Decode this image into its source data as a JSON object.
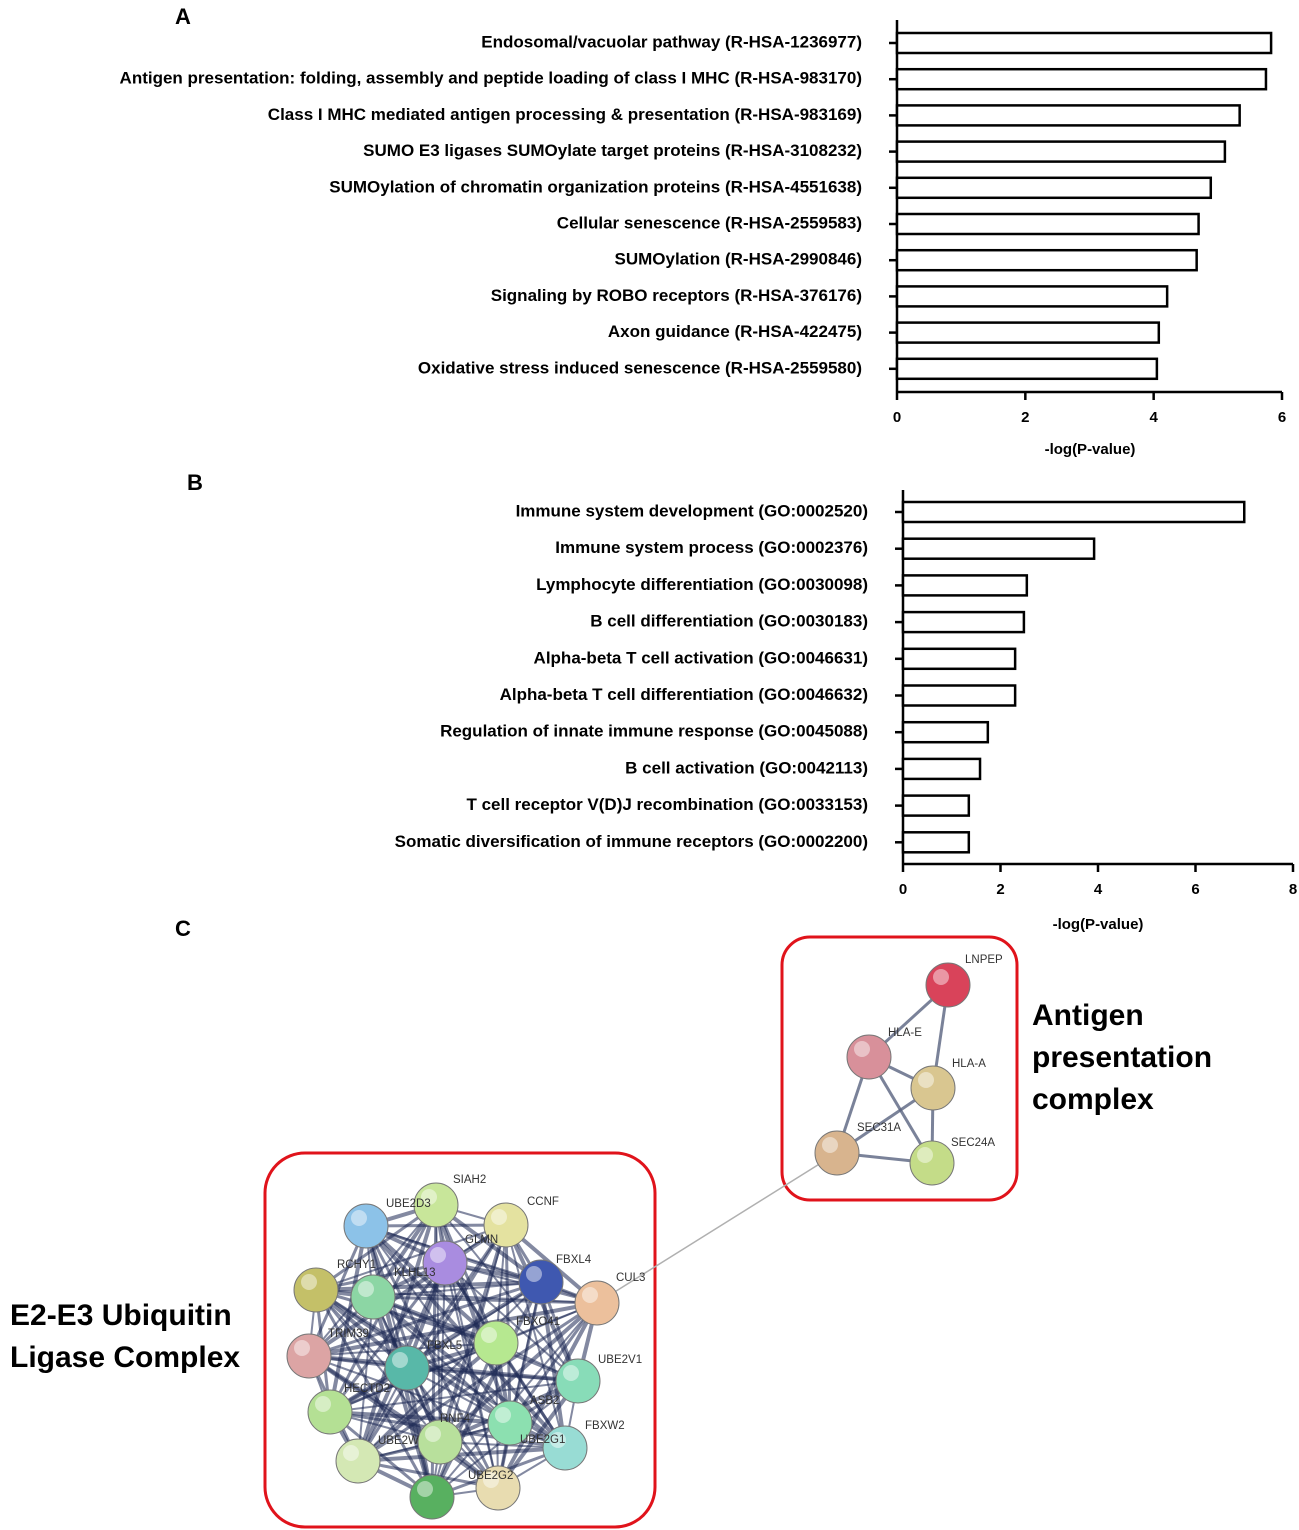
{
  "chart_data": [
    {
      "type": "barh",
      "panel": "A",
      "xlabel": "-log(P-value)",
      "categories": [
        "Endosomal/vacuolar pathway (R-HSA-1236977)",
        "Antigen presentation: folding, assembly and peptide loading of class I MHC (R-HSA-983170)",
        "Class I MHC mediated antigen processing & presentation (R-HSA-983169)",
        "SUMO E3 ligases SUMOylate target proteins (R-HSA-3108232)",
        "SUMOylation of chromatin organization proteins (R-HSA-4551638)",
        "Cellular senescence (R-HSA-2559583)",
        "SUMOylation (R-HSA-2990846)",
        "Signaling by ROBO receptors (R-HSA-376176)",
        "Axon guidance (R-HSA-422475)",
        "Oxidative stress induced senescence (R-HSA-2559580)"
      ],
      "values": [
        5.83,
        5.75,
        5.34,
        5.11,
        4.89,
        4.7,
        4.67,
        4.21,
        4.08,
        4.05
      ],
      "color": "#ffffff",
      "xlim": [
        0,
        6
      ],
      "xticks": [
        0,
        2,
        4,
        6
      ]
    },
    {
      "type": "barh",
      "panel": "B",
      "xlabel": "-log(P-value)",
      "categories": [
        "Immune system development (GO:0002520)",
        "Immune system process (GO:0002376)",
        "Lymphocyte differentiation (GO:0030098)",
        "B cell differentiation (GO:0030183)",
        "Alpha-beta T cell activation (GO:0046631)",
        "Alpha-beta T cell differentiation (GO:0046632)",
        "Regulation of innate immune response (GO:0045088)",
        "B cell activation (GO:0042113)",
        "T cell receptor V(D)J recombination (GO:0033153)",
        "Somatic diversification of immune receptors (GO:0002200)"
      ],
      "values": [
        7.0,
        3.92,
        2.54,
        2.48,
        2.3,
        2.3,
        1.74,
        1.58,
        1.35,
        1.35
      ],
      "color": "#ffffff",
      "xlim": [
        0,
        8
      ],
      "xticks": [
        0,
        2,
        4,
        6,
        8
      ]
    }
  ],
  "network": {
    "panel": "C",
    "groups": [
      {
        "label_lines": [
          "Antigen",
          "presentation",
          "complex"
        ]
      },
      {
        "label_lines": [
          "E2-E3 Ubiquitin",
          "Ligase Complex"
        ]
      }
    ],
    "nodes": [
      {
        "label": "LNPEP",
        "color": "#d9435a"
      },
      {
        "label": "HLA-E",
        "color": "#d8909a"
      },
      {
        "label": "HLA-A",
        "color": "#d9c690"
      },
      {
        "label": "SEC31A",
        "color": "#d8b48e"
      },
      {
        "label": "SEC24A",
        "color": "#c4dc88"
      },
      {
        "label": "SIAH2",
        "color": "#c8e69a"
      },
      {
        "label": "UBE2D3",
        "color": "#8cc2e8"
      },
      {
        "label": "CCNF",
        "color": "#e4e2a0"
      },
      {
        "label": "GLMN",
        "color": "#a98ce0"
      },
      {
        "label": "FBXL4",
        "color": "#3f58b0"
      },
      {
        "label": "CUL3",
        "color": "#ecc09c"
      },
      {
        "label": "RCHY1",
        "color": "#c4c068"
      },
      {
        "label": "KLHL13",
        "color": "#8cd6a4"
      },
      {
        "label": "TRIM39",
        "color": "#dca4a4"
      },
      {
        "label": "FBXO41",
        "color": "#b6e890"
      },
      {
        "label": "FBXL5",
        "color": "#58b8a8"
      },
      {
        "label": "UBE2V1",
        "color": "#88dcb8"
      },
      {
        "label": "HECTD2",
        "color": "#b4e094"
      },
      {
        "label": "ASB2",
        "color": "#8ce0b0"
      },
      {
        "label": "RNF4",
        "color": "#b8e09c"
      },
      {
        "label": "FBXW2",
        "color": "#98dcd4"
      },
      {
        "label": "UBE2W",
        "color": "#d4e8b4"
      },
      {
        "label": "UBE2G1",
        "color": "#e8dcb0"
      },
      {
        "label": "UBE2G2",
        "color": "#58b060"
      }
    ]
  }
}
